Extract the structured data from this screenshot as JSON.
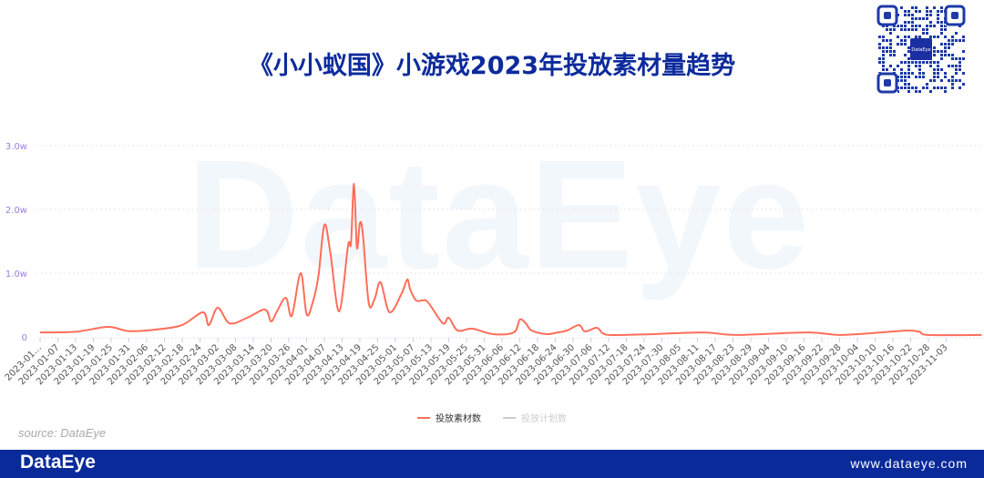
{
  "title": "《小小蚁国》小游戏2023年投放素材量趋势",
  "watermark": "DataEye",
  "source": "source: DataEye",
  "footer": {
    "logo": "DataEye",
    "url": "www.dataeye.com"
  },
  "qr": {
    "center_label": "DataEye"
  },
  "colors": {
    "title": "#0d2b9c",
    "series": "#ff6e5a",
    "footer": "#0a2a9a",
    "axis_label": "#9a7fe0",
    "legend_inactive": "#cccccc"
  },
  "chart_data": {
    "type": "line",
    "title": "《小小蚁国》小游戏2023年投放素材量趋势",
    "xlabel": "",
    "ylabel": "",
    "ylim": [
      0,
      30000
    ],
    "yticks": [
      {
        "value": 0,
        "label": "0"
      },
      {
        "value": 10000,
        "label": "1.0w"
      },
      {
        "value": 20000,
        "label": "2.0w"
      },
      {
        "value": 30000,
        "label": "3.0w"
      }
    ],
    "x_tick_labels": [
      "2023-01…",
      "2023-01-07",
      "2023-01-13",
      "2023-01-19",
      "2023-01-25",
      "2023-01-31",
      "2023-02-06",
      "2023-02-12",
      "2023-02-18",
      "2023-02-24",
      "2023-03-02",
      "2023-03-08",
      "2023-03-14",
      "2023-03-20",
      "2023-03-26",
      "2023-04-01",
      "2023-04-07",
      "2023-04-13",
      "2023-04-19",
      "2023-04-25",
      "2023-05-01",
      "2023-05-07",
      "2023-05-13",
      "2023-05-19",
      "2023-05-25",
      "2023-05-31",
      "2023-06-06",
      "2023-06-12",
      "2023-06-18",
      "2023-06-24",
      "2023-06-30",
      "2023-07-06",
      "2023-07-12",
      "2023-07-18",
      "2023-07-24",
      "2023-07-30",
      "2023-08-05",
      "2023-08-11",
      "2023-08-17",
      "2023-08-23",
      "2023-08-29",
      "2023-09-04",
      "2023-09-10",
      "2023-09-16",
      "2023-09-22",
      "2023-09-28",
      "2023-10-04",
      "2023-10-10",
      "2023-10-16",
      "2023-10-22",
      "2023-10-28",
      "2023-11-03"
    ],
    "grid": true,
    "legend_position": "bottom-center",
    "legend": [
      {
        "name": "投放素材数",
        "active": true
      },
      {
        "name": "投放计划数",
        "active": false
      }
    ],
    "series": [
      {
        "name": "投放素材数",
        "points": [
          [
            "2023-01-01",
            700
          ],
          [
            "2023-01-13",
            800
          ],
          [
            "2023-01-24",
            1570
          ],
          [
            "2023-01-31",
            900
          ],
          [
            "2023-02-10",
            1200
          ],
          [
            "2023-02-18",
            1860
          ],
          [
            "2023-02-25",
            3860
          ],
          [
            "2023-02-27",
            1860
          ],
          [
            "2023-03-02",
            4570
          ],
          [
            "2023-03-06",
            2140
          ],
          [
            "2023-03-12",
            3000
          ],
          [
            "2023-03-18",
            4290
          ],
          [
            "2023-03-20",
            2430
          ],
          [
            "2023-03-22",
            4000
          ],
          [
            "2023-03-25",
            6140
          ],
          [
            "2023-03-27",
            3290
          ],
          [
            "2023-03-30",
            10000
          ],
          [
            "2023-04-01",
            3570
          ],
          [
            "2023-04-03",
            5290
          ],
          [
            "2023-04-05",
            9570
          ],
          [
            "2023-04-07",
            17570
          ],
          [
            "2023-04-09",
            13290
          ],
          [
            "2023-04-12",
            4000
          ],
          [
            "2023-04-15",
            14290
          ],
          [
            "2023-04-16",
            14700
          ],
          [
            "2023-04-17",
            24000
          ],
          [
            "2023-04-18",
            14000
          ],
          [
            "2023-04-19",
            17860
          ],
          [
            "2023-04-20",
            16140
          ],
          [
            "2023-04-22",
            5290
          ],
          [
            "2023-04-24",
            6000
          ],
          [
            "2023-04-26",
            8570
          ],
          [
            "2023-04-29",
            3860
          ],
          [
            "2023-05-03",
            6710
          ],
          [
            "2023-05-05",
            9000
          ],
          [
            "2023-05-06",
            7430
          ],
          [
            "2023-05-08",
            5710
          ],
          [
            "2023-05-10",
            5710
          ],
          [
            "2023-05-12",
            5430
          ],
          [
            "2023-05-17",
            2140
          ],
          [
            "2023-05-19",
            3000
          ],
          [
            "2023-05-22",
            1000
          ],
          [
            "2023-05-27",
            1290
          ],
          [
            "2023-06-03",
            430
          ],
          [
            "2023-06-10",
            710
          ],
          [
            "2023-06-12",
            2710
          ],
          [
            "2023-06-14",
            2140
          ],
          [
            "2023-06-16",
            1000
          ],
          [
            "2023-06-21",
            430
          ],
          [
            "2023-06-25",
            710
          ],
          [
            "2023-06-28",
            1000
          ],
          [
            "2023-07-02",
            1860
          ],
          [
            "2023-07-04",
            860
          ],
          [
            "2023-07-08",
            1430
          ],
          [
            "2023-07-10",
            570
          ],
          [
            "2023-07-13",
            290
          ],
          [
            "2023-07-25",
            400
          ],
          [
            "2023-08-13",
            700
          ],
          [
            "2023-08-24",
            300
          ],
          [
            "2023-09-17",
            700
          ],
          [
            "2023-09-28",
            300
          ],
          [
            "2023-10-12",
            700
          ],
          [
            "2023-10-21",
            1000
          ],
          [
            "2023-10-25",
            800
          ],
          [
            "2023-10-28",
            300
          ],
          [
            "2023-11-15",
            300
          ]
        ]
      },
      {
        "name": "投放计划数",
        "points": []
      }
    ]
  }
}
